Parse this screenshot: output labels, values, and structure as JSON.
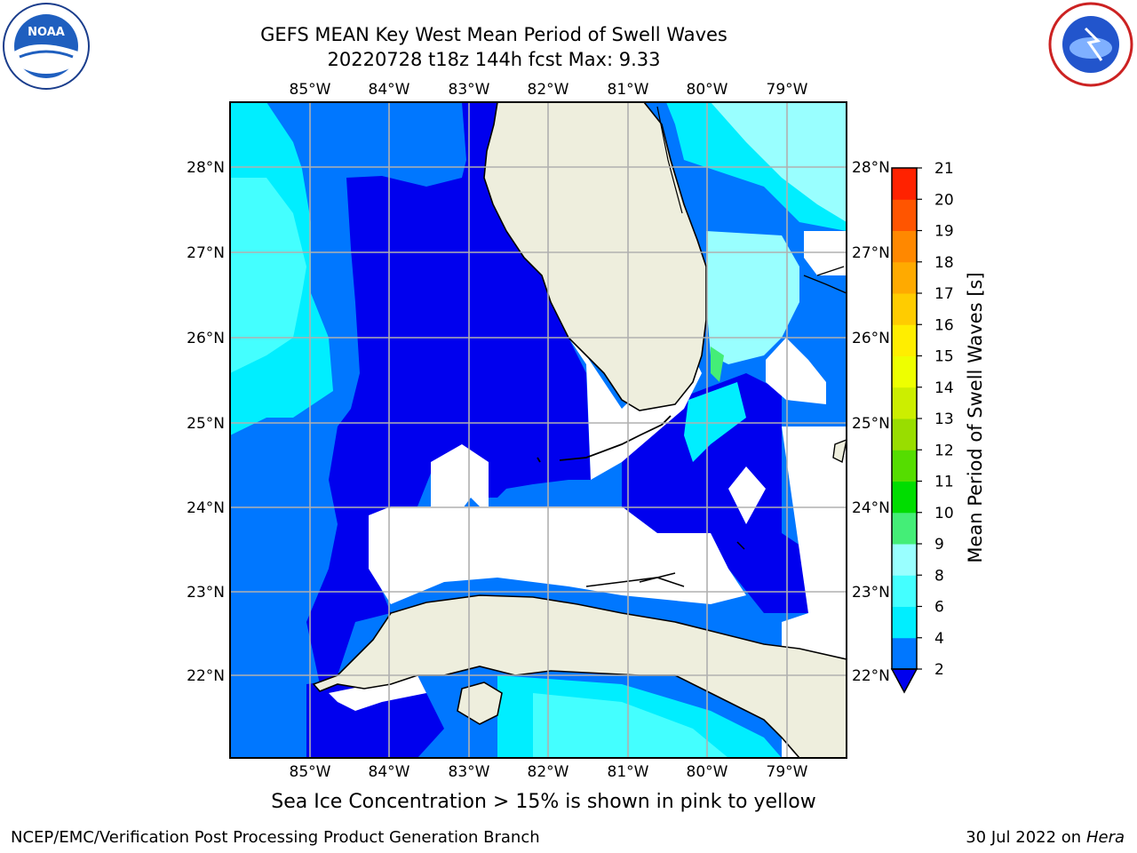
{
  "header": {
    "title_line1": "GEFS MEAN Key West Mean Period of Swell Waves",
    "title_line2": "20220728 t18z 144h fcst   Max: 9.33"
  },
  "logos": {
    "left": {
      "text": "NOAA",
      "ring_text": "NATIONAL OCEANIC AND ATMOSPHERIC ADMINISTRATION · U.S. DEPARTMENT OF COMMERCE ·"
    },
    "right": {
      "ring_text": "NATIONAL WEATHER SERVICE"
    }
  },
  "map": {
    "lon_labels": [
      "85°W",
      "84°W",
      "83°W",
      "82°W",
      "81°W",
      "80°W",
      "79°W"
    ],
    "lat_labels": [
      "28°N",
      "27°N",
      "26°N",
      "25°N",
      "24°N",
      "23°N",
      "22°N"
    ],
    "colors": {
      "land": "#eeeedd",
      "no_data": "#ffffff",
      "grid": "#b0b0b0"
    }
  },
  "colorbar": {
    "label": "Mean Period of Swell Waves [s]",
    "ticks": [
      "2",
      "4",
      "6",
      "8",
      "9",
      "10",
      "11",
      "12",
      "13",
      "14",
      "15",
      "16",
      "17",
      "18",
      "19",
      "20",
      "21"
    ],
    "colors": [
      "#0000ee",
      "#0077ff",
      "#00eeff",
      "#44ffff",
      "#99ffff",
      "#44ee77",
      "#00dd00",
      "#55dd00",
      "#99dd00",
      "#ccee00",
      "#eeff00",
      "#ffee00",
      "#ffcc00",
      "#ffaa00",
      "#ff8800",
      "#ff5500",
      "#ff2200",
      "#ff0000"
    ]
  },
  "note": "Sea Ice Concentration > 15% is shown in pink to yellow",
  "footer": {
    "left": "NCEP/EMC/Verification Post Processing Product Generation Branch",
    "right_prefix": "30 Jul 2022 on ",
    "right_host": "Hera"
  }
}
